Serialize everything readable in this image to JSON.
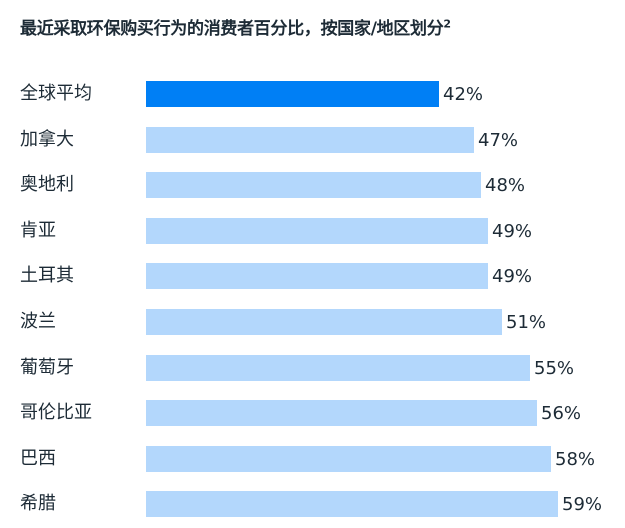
{
  "title": "最近采取环保购买行为的消费者百分比，按国家/地区划分",
  "title_superscript": "2",
  "colors": {
    "highlight": "#007ff5",
    "default": "#b3d7fc",
    "text": "#1d2b36"
  },
  "chart_data": {
    "type": "bar",
    "orientation": "horizontal",
    "title": "最近采取环保购买行为的消费者百分比，按国家/地区划分²",
    "categories": [
      "全球平均",
      "加拿大",
      "奥地利",
      "肯亚",
      "土耳其",
      "波兰",
      "葡萄牙",
      "哥伦比亚",
      "巴西",
      "希腊"
    ],
    "values": [
      42,
      47,
      48,
      49,
      49,
      51,
      55,
      56,
      58,
      59
    ],
    "value_labels": [
      "42%",
      "47%",
      "48%",
      "49%",
      "49%",
      "51%",
      "55%",
      "56%",
      "58%",
      "59%"
    ],
    "highlight_index": 0,
    "xlabel": "",
    "ylabel": "",
    "xlim": [
      0,
      100
    ],
    "grid": false,
    "legend": null
  }
}
